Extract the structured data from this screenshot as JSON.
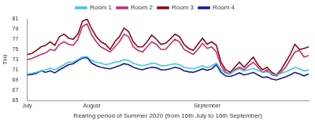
{
  "chart_data": {
    "type": "line",
    "x_label": "Rearing period of Summer 2020 (from 16th July to 16th September)",
    "y_label": "THI",
    "categories": [
      "July",
      null,
      null,
      null,
      null,
      null,
      null,
      null,
      null,
      null,
      null,
      null,
      null,
      null,
      "August",
      null,
      null,
      null,
      null,
      null,
      null,
      null,
      null,
      null,
      null,
      null,
      null,
      null,
      null,
      null,
      null,
      null,
      null,
      null,
      null,
      null,
      null,
      null,
      null,
      "September",
      null,
      null,
      null,
      null,
      null,
      null,
      null,
      null,
      null,
      null,
      null,
      null,
      null,
      null,
      null,
      null,
      null,
      null,
      null,
      null,
      null,
      null
    ],
    "series": [
      {
        "name": "Room 1",
        "color": "#3cc8e0",
        "values": [
          70.2,
          70.3,
          70.5,
          70.8,
          71,
          71.3,
          71,
          71.5,
          72,
          72.5,
          72.5,
          73,
          73.5,
          73.6,
          72.8,
          72.5,
          72.3,
          72,
          72.2,
          72.5,
          72.6,
          73,
          72.8,
          72.3,
          72,
          71.8,
          72,
          72.3,
          72.2,
          71.8,
          71.8,
          72,
          72.2,
          72,
          71.5,
          71.3,
          71.2,
          71.5,
          71.8,
          71.4,
          71.8,
          72.3,
          71,
          70.3,
          70.2,
          70.8,
          71.2,
          70.8,
          71,
          71.3,
          70.9,
          70.5,
          70.6,
          70.2,
          70,
          70.3,
          70.6,
          71,
          71.5,
          71.2,
          70.8,
          71
        ]
      },
      {
        "name": "Room 2",
        "color": "#c0306e",
        "values": [
          73,
          73.2,
          73.6,
          74,
          74.3,
          75,
          74.8,
          76,
          76.5,
          76,
          75.8,
          77,
          79.5,
          80,
          77.8,
          76.5,
          75.5,
          75,
          74.5,
          75.5,
          76.5,
          78,
          77.5,
          75.5,
          74.8,
          74.5,
          75.5,
          76.5,
          76,
          75,
          75,
          76,
          77,
          76.5,
          75,
          74.5,
          74,
          75,
          76.2,
          75.2,
          75.5,
          74.5,
          71.8,
          70.5,
          70.2,
          71,
          71.5,
          71,
          71.8,
          72.5,
          71.5,
          70.5,
          71,
          70,
          69.8,
          70.5,
          71.5,
          73,
          74.5,
          74.8,
          73.5,
          73.8
        ]
      },
      {
        "name": "Room 3",
        "color": "#8b0a1a",
        "values": [
          74,
          74.2,
          74.8,
          75.5,
          75.8,
          76.5,
          75.8,
          77.5,
          78,
          77.2,
          77,
          78,
          80.5,
          81,
          79,
          77.5,
          76.5,
          76,
          75,
          76.5,
          77.5,
          79.2,
          78.5,
          76.5,
          75.5,
          75.5,
          76.5,
          77.8,
          77,
          76,
          76.2,
          77,
          78,
          77.5,
          76,
          75.2,
          74.8,
          76,
          77.2,
          76,
          76.5,
          75.8,
          72.5,
          71,
          70.5,
          71.5,
          72.5,
          71.5,
          72.5,
          73.5,
          72,
          71,
          71.5,
          70.5,
          70,
          71,
          72.5,
          74,
          76,
          75,
          75.2,
          75.5
        ]
      },
      {
        "name": "Room 4",
        "color": "#1a1a8c",
        "values": [
          70,
          70.1,
          70.3,
          70.8,
          70.5,
          70.8,
          70.4,
          71,
          71.5,
          72,
          72.2,
          72.8,
          73.3,
          73.4,
          72.3,
          71.8,
          71.5,
          71.3,
          71.2,
          71.5,
          71.8,
          72.2,
          72,
          71.5,
          71.2,
          71,
          71.3,
          71.5,
          71.4,
          71,
          71,
          71.2,
          71.5,
          71.3,
          70.8,
          70.6,
          70.5,
          70.8,
          71.2,
          70.9,
          71.2,
          72,
          70.5,
          69.8,
          69.7,
          70,
          70.4,
          70,
          70.2,
          70.5,
          70,
          69.5,
          69.6,
          69.2,
          69,
          69.3,
          69.6,
          70,
          70.5,
          70.2,
          69.8,
          70.2
        ]
      }
    ],
    "ylim": [
      65,
      81
    ],
    "yticks": [
      65,
      67,
      69,
      71,
      73,
      75,
      77,
      79,
      81
    ],
    "grid": false,
    "legend": "top"
  }
}
